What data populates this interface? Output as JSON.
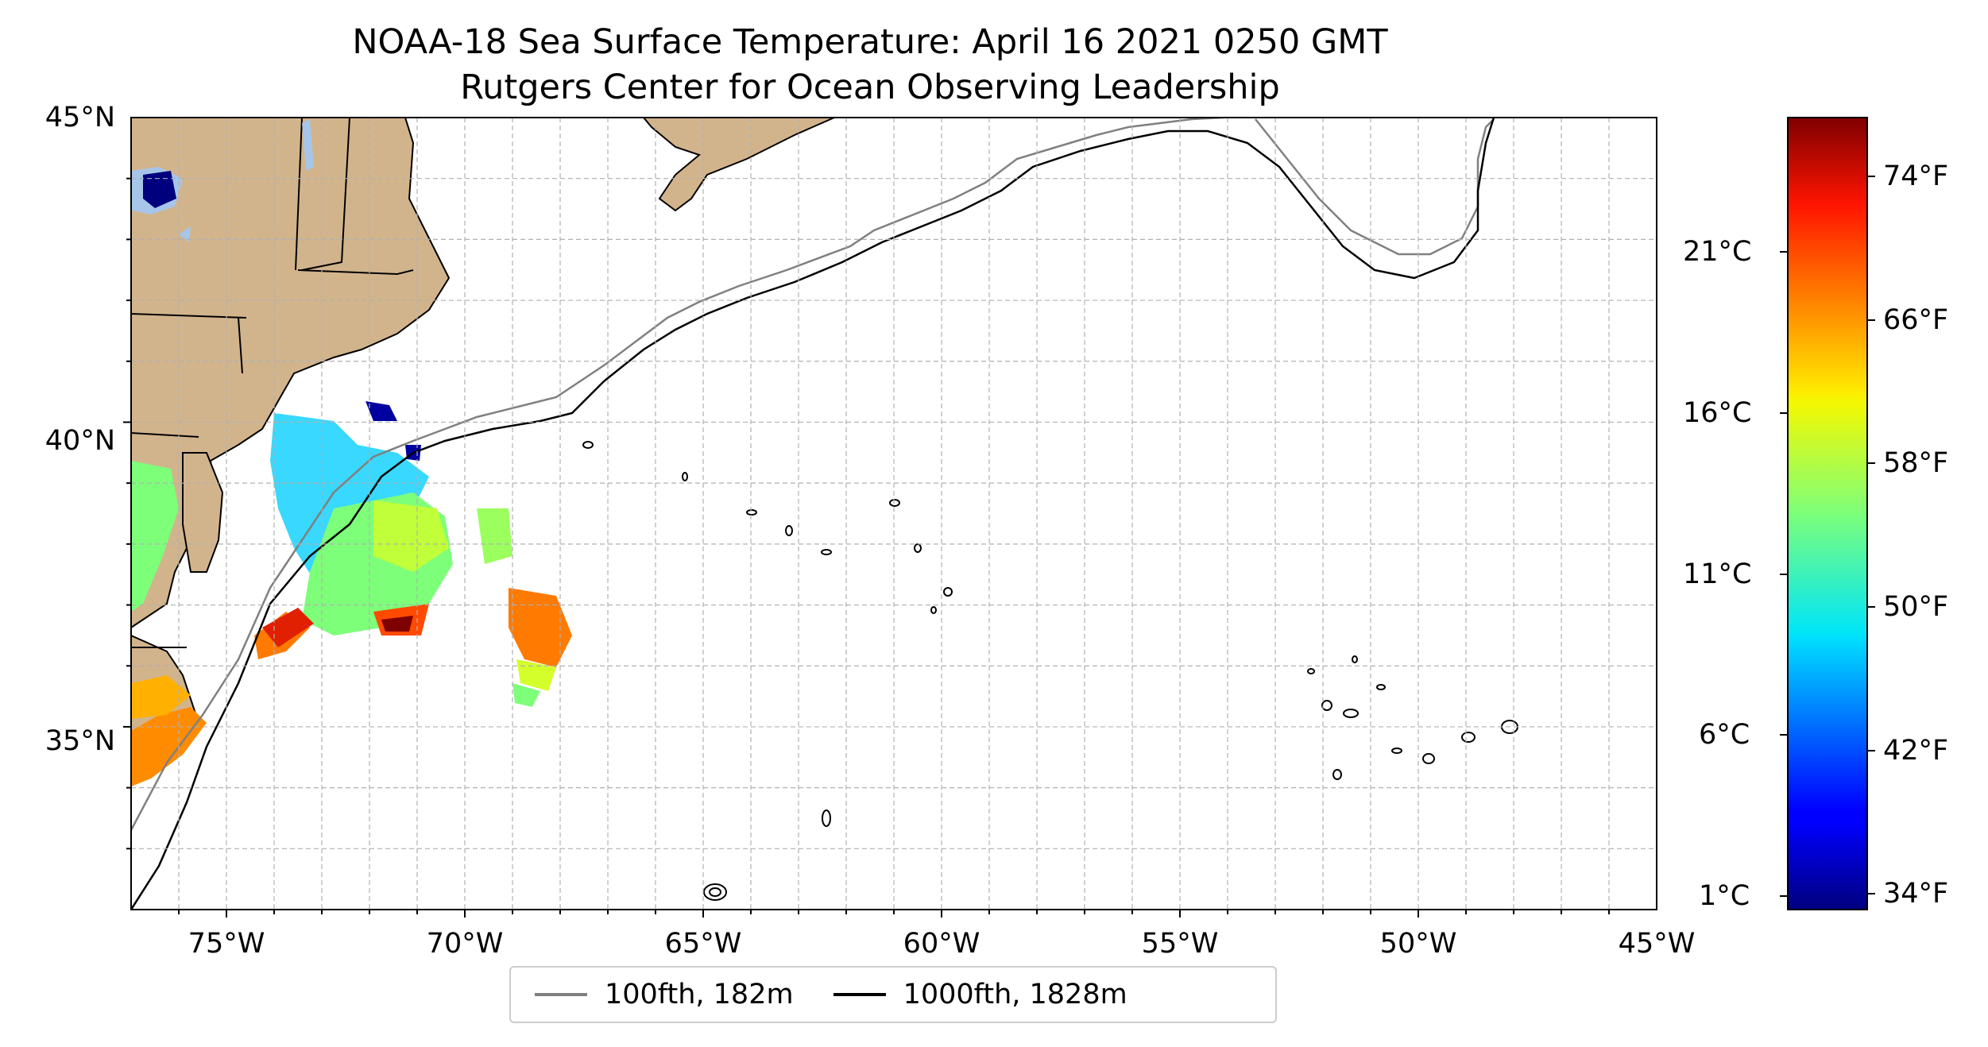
{
  "title": {
    "line1": "NOAA-18 Sea Surface Temperature: April 16 2021 0250 GMT",
    "line2": "Rutgers Center for Ocean Observing Leadership"
  },
  "map": {
    "lon_range": [
      -77,
      -45
    ],
    "lat_range": [
      32,
      45
    ],
    "lat_ticks": [
      {
        "value": 45,
        "label": "45°N"
      },
      {
        "value": 40,
        "label": "40°N"
      },
      {
        "value": 35,
        "label": "35°N"
      }
    ],
    "lon_ticks": [
      {
        "value": -75,
        "label": "75°W"
      },
      {
        "value": -70,
        "label": "70°W"
      },
      {
        "value": -65,
        "label": "65°W"
      },
      {
        "value": -60,
        "label": "60°W"
      },
      {
        "value": -55,
        "label": "55°W"
      },
      {
        "value": -50,
        "label": "50°W"
      },
      {
        "value": -45,
        "label": "45°W"
      }
    ],
    "grid": "dashed, 1° spacing",
    "land_color": "#d2b48c",
    "lake_color": "#a6c5e8"
  },
  "colorbar": {
    "colormap": "jet",
    "celsius_ticks": [
      "21°C",
      "16°C",
      "11°C",
      "6°C",
      "1°C"
    ],
    "fahrenheit_ticks": [
      "74°F",
      "66°F",
      "58°F",
      "50°F",
      "42°F",
      "34°F"
    ]
  },
  "legend": {
    "items": [
      {
        "label": "100fth, 182m",
        "color": "#808080"
      },
      {
        "label": "1000fth, 1828m",
        "color": "#000000"
      }
    ]
  }
}
